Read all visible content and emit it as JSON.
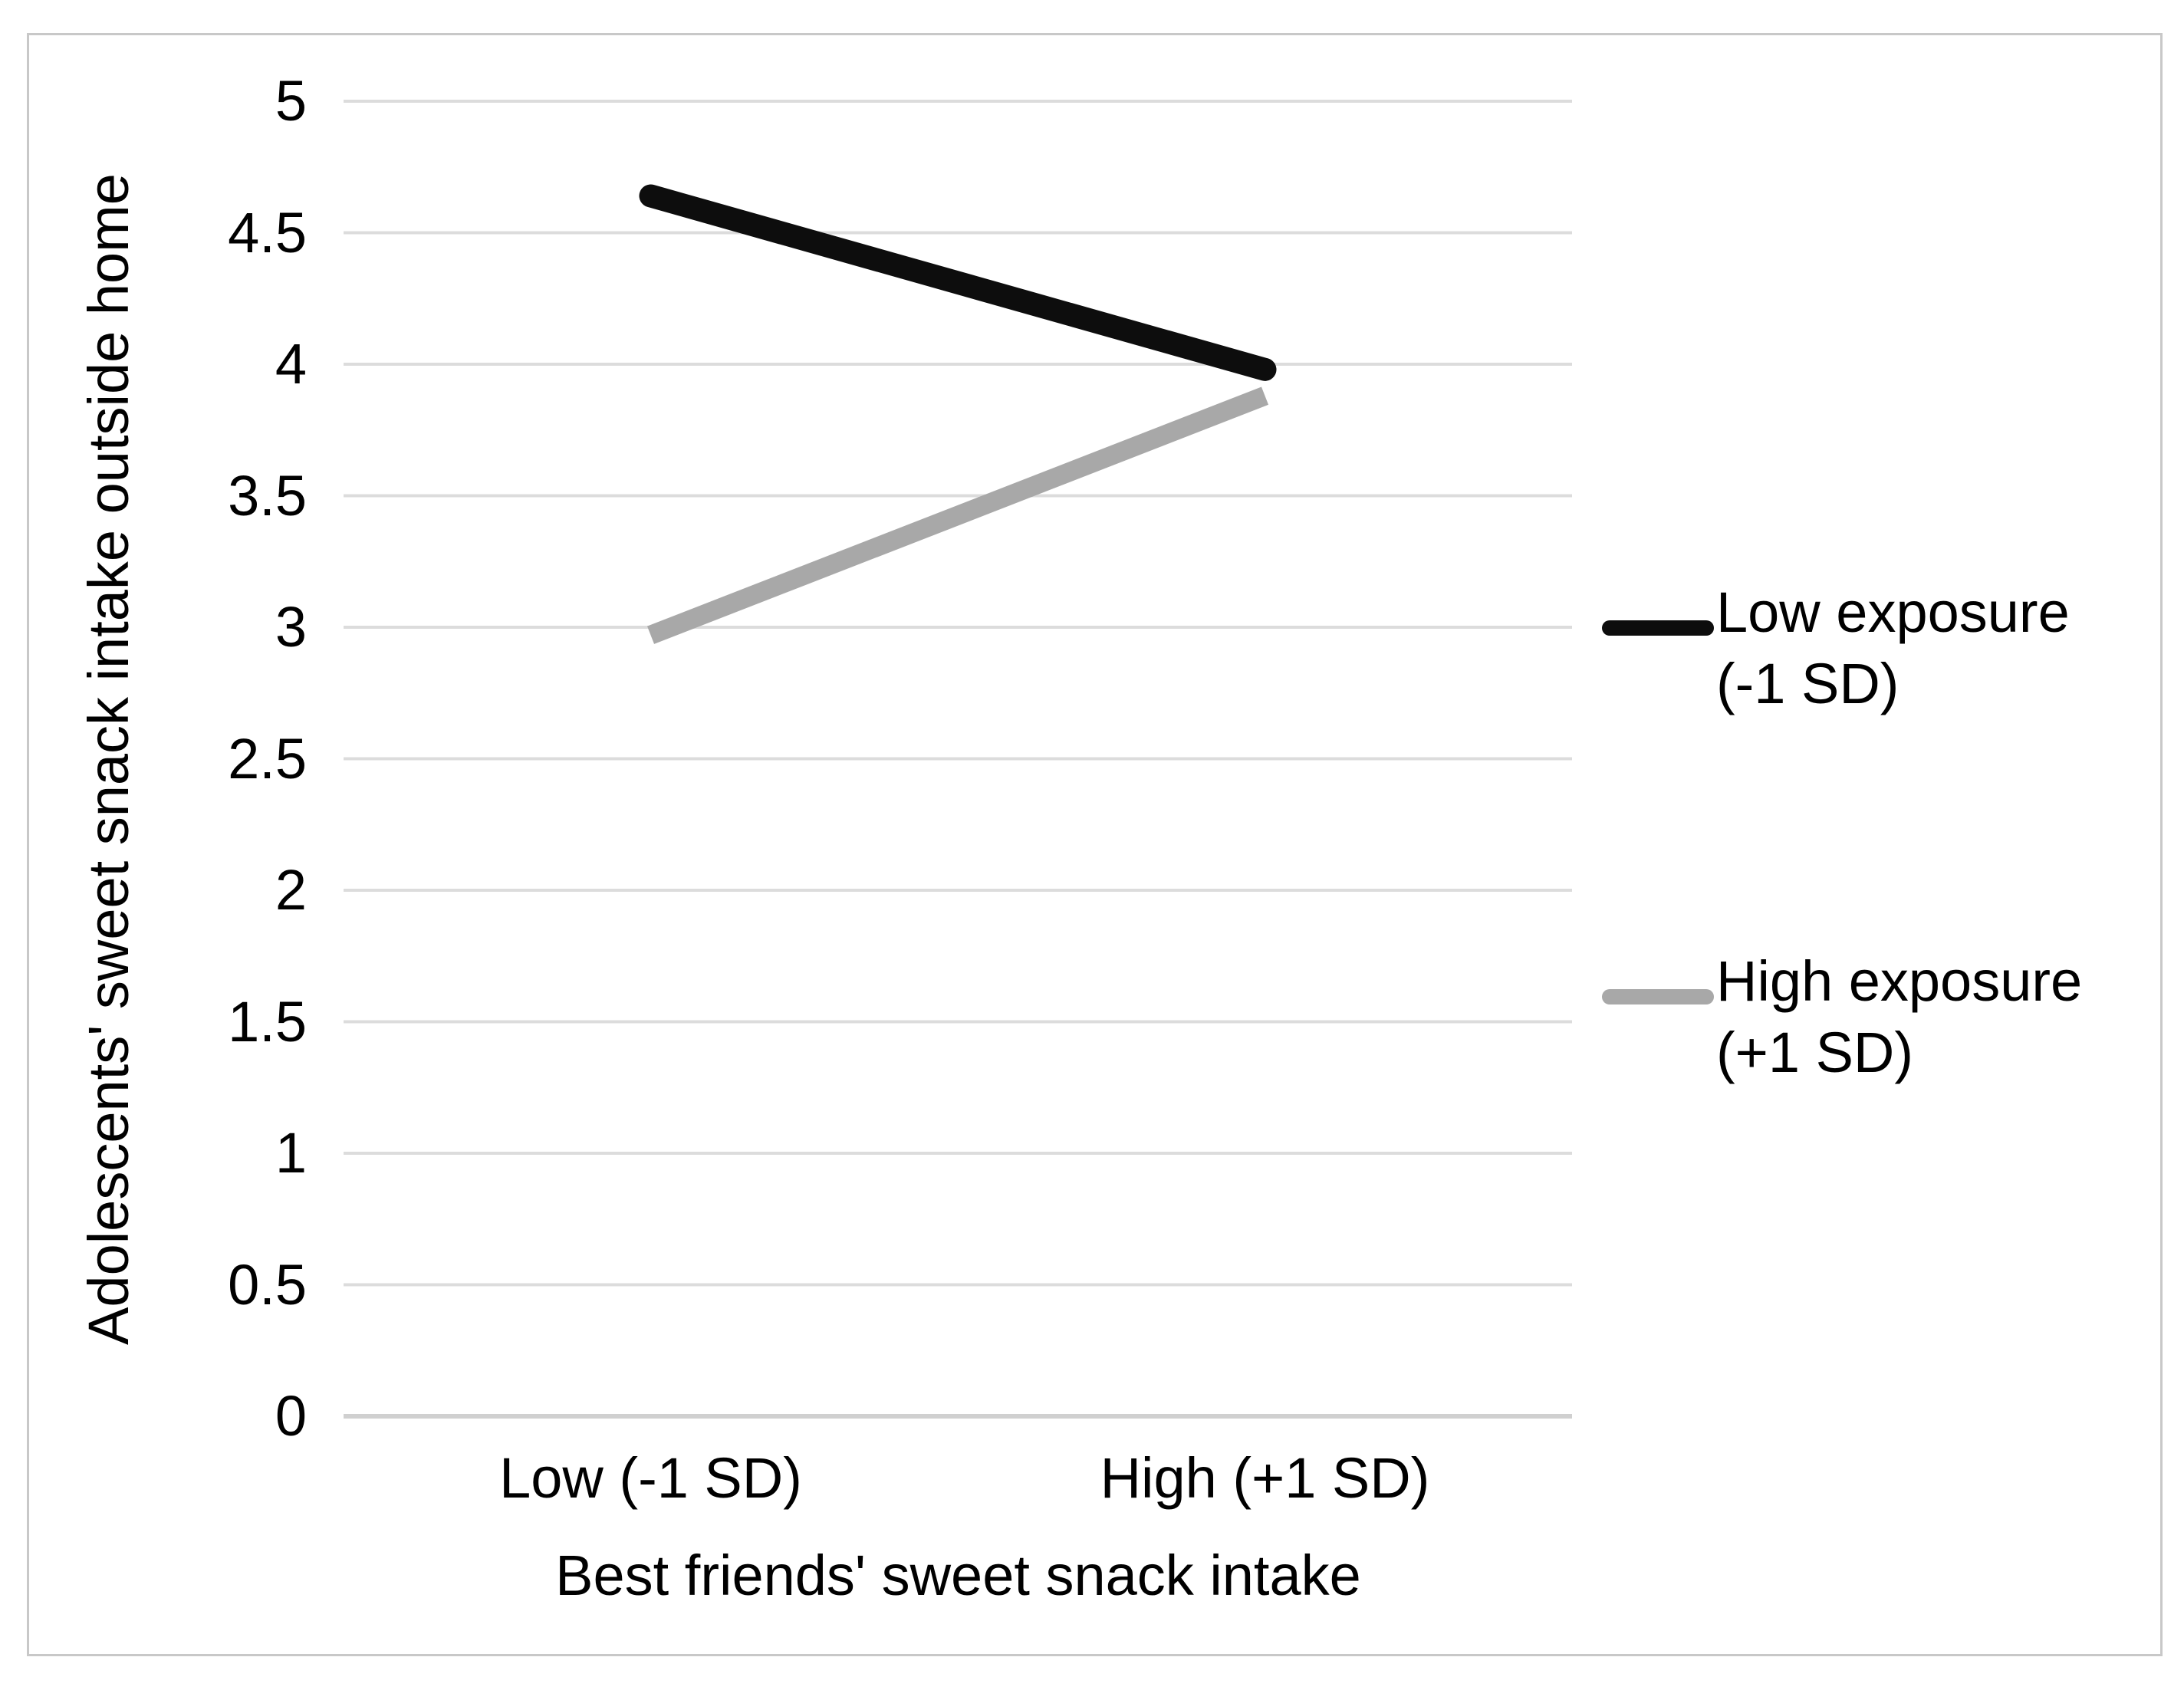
{
  "figure": {
    "background": "#ffffff",
    "border_color": "#c8c8c8"
  },
  "chart_data": {
    "type": "line",
    "title": "",
    "xlabel": "Best friends' sweet snack intake",
    "ylabel": "Adolescents' sweet snack intake outside home",
    "categories": [
      "Low (-1 SD)",
      "High (+1 SD)"
    ],
    "series": [
      {
        "name": "Low exposure (-1 SD)",
        "name_lines": [
          "Low exposure",
          "(-1 SD)"
        ],
        "color": "#0d0d0d",
        "values": [
          4.64,
          3.98
        ]
      },
      {
        "name": "High exposure (+1 SD)",
        "name_lines": [
          "High exposure",
          "(+1 SD)"
        ],
        "color": "#a8a8a8",
        "values": [
          2.97,
          3.88
        ]
      }
    ],
    "ylim": [
      0,
      5
    ],
    "ytick_step": 0.5,
    "yticks": [
      "0",
      "0.5",
      "1",
      "1.5",
      "2",
      "2.5",
      "3",
      "3.5",
      "4",
      "4.5",
      "5"
    ],
    "grid": true,
    "gridline_color": "#dcdcdc",
    "axis_line_color": "#d0d0d0",
    "legend_position": "right"
  }
}
